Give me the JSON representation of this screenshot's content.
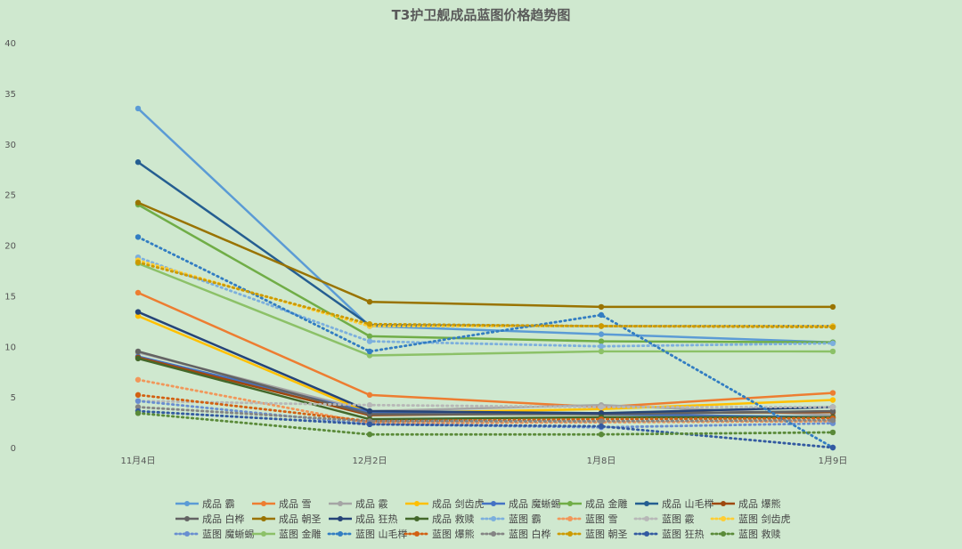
{
  "chart_data": {
    "type": "line",
    "title": "T3护卫舰成品蓝图价格趋势图",
    "categories": [
      "11月4日",
      "12月2日",
      "1月8日",
      "1月9日"
    ],
    "ylim": [
      0,
      40
    ],
    "yticks": [
      0,
      5,
      10,
      15,
      20,
      25,
      30,
      35,
      40
    ],
    "grid": false,
    "legend_position": "bottom",
    "series": [
      {
        "name": "成品 霸",
        "color": "#5b9bd5",
        "dashed": false,
        "values": [
          33.5,
          12.0,
          11.2,
          10.4
        ]
      },
      {
        "name": "成品 雪",
        "color": "#ed7d31",
        "dashed": false,
        "values": [
          15.3,
          5.2,
          4.0,
          5.4
        ]
      },
      {
        "name": "成品 霰",
        "color": "#a5a5a5",
        "dashed": false,
        "values": [
          9.4,
          3.6,
          4.2,
          3.2
        ]
      },
      {
        "name": "成品 剑齿虎",
        "color": "#ffc000",
        "dashed": false,
        "values": [
          13.0,
          3.4,
          3.8,
          4.7
        ]
      },
      {
        "name": "成品 魔蜥蜴",
        "color": "#4472c4",
        "dashed": false,
        "values": [
          9.0,
          3.5,
          3.3,
          3.0
        ]
      },
      {
        "name": "成品 金雕",
        "color": "#70ad47",
        "dashed": false,
        "values": [
          24.0,
          11.0,
          10.5,
          10.4
        ]
      },
      {
        "name": "成品 山毛榉",
        "color": "#255e91",
        "dashed": false,
        "values": [
          28.2,
          12.1,
          12.0,
          12.0
        ]
      },
      {
        "name": "成品 爆熊",
        "color": "#9e480e",
        "dashed": false,
        "values": [
          8.9,
          3.2,
          3.4,
          3.5
        ]
      },
      {
        "name": "成品 白桦",
        "color": "#636363",
        "dashed": false,
        "values": [
          9.5,
          3.3,
          3.3,
          3.6
        ]
      },
      {
        "name": "成品 朝圣",
        "color": "#997300",
        "dashed": false,
        "values": [
          24.2,
          14.4,
          13.9,
          13.9
        ]
      },
      {
        "name": "成品 狂热",
        "color": "#264478",
        "dashed": false,
        "values": [
          13.4,
          3.6,
          3.4,
          4.0
        ]
      },
      {
        "name": "成品 救赎",
        "color": "#43682b",
        "dashed": false,
        "values": [
          8.8,
          2.8,
          3.0,
          3.0
        ]
      },
      {
        "name": "蓝图 霸",
        "color": "#7cafdd",
        "dashed": true,
        "values": [
          18.8,
          10.5,
          10.0,
          10.3
        ]
      },
      {
        "name": "蓝图 雪",
        "color": "#f1975a",
        "dashed": true,
        "values": [
          6.7,
          2.4,
          2.5,
          2.6
        ]
      },
      {
        "name": "蓝图 霰",
        "color": "#b7b7b7",
        "dashed": true,
        "values": [
          4.6,
          4.2,
          4.0,
          4.0
        ]
      },
      {
        "name": "蓝图 剑齿虎",
        "color": "#ffcd33",
        "dashed": true,
        "values": [
          18.5,
          12.0,
          12.0,
          12.0
        ]
      },
      {
        "name": "蓝图 魔蜥蜴",
        "color": "#698ed0",
        "dashed": true,
        "values": [
          4.6,
          2.3,
          2.0,
          2.4
        ]
      },
      {
        "name": "蓝图 金雕",
        "color": "#8cc168",
        "dashed": false,
        "values": [
          18.2,
          9.1,
          9.5,
          9.5
        ]
      },
      {
        "name": "蓝图 山毛榉",
        "color": "#327dc2",
        "dashed": true,
        "values": [
          20.8,
          9.5,
          13.1,
          0.0
        ]
      },
      {
        "name": "蓝图 爆熊",
        "color": "#d26012",
        "dashed": true,
        "values": [
          5.2,
          2.6,
          2.8,
          2.9
        ]
      },
      {
        "name": "蓝图 白桦",
        "color": "#848484",
        "dashed": true,
        "values": [
          4.0,
          2.6,
          2.6,
          2.7
        ]
      },
      {
        "name": "蓝图 朝圣",
        "color": "#cc9a00",
        "dashed": true,
        "values": [
          18.3,
          12.2,
          12.0,
          11.9
        ]
      },
      {
        "name": "蓝图 狂热",
        "color": "#335aa1",
        "dashed": true,
        "values": [
          3.6,
          2.3,
          2.1,
          0.0
        ]
      },
      {
        "name": "蓝图 救赎",
        "color": "#5a8a39",
        "dashed": true,
        "values": [
          3.4,
          1.3,
          1.3,
          1.5
        ]
      }
    ]
  }
}
